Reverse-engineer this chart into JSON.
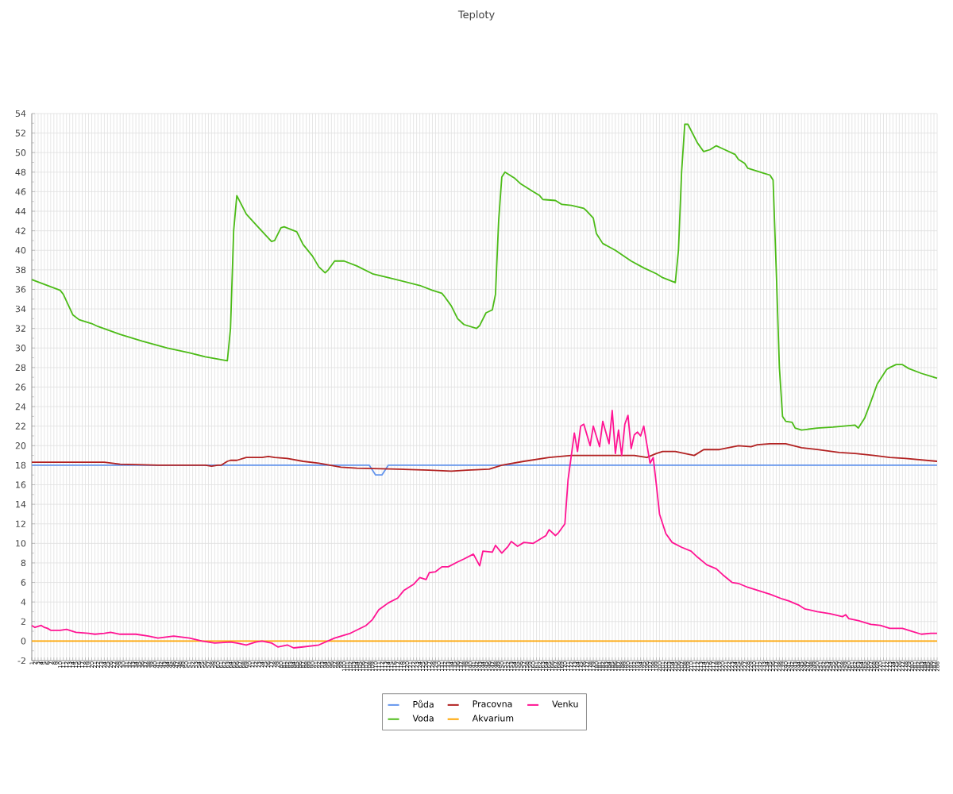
{
  "chart_data": {
    "type": "line",
    "title": "Teploty",
    "xlim": [
      1,
      288
    ],
    "xticks": [
      1,
      2,
      3,
      4,
      5,
      6,
      7,
      8,
      9,
      10,
      11,
      12,
      13,
      14,
      15,
      16,
      17,
      18,
      19,
      20,
      21,
      22,
      23,
      24,
      25,
      26,
      27,
      28,
      29,
      30,
      31,
      32,
      33,
      34,
      35,
      36,
      37,
      38,
      39,
      40,
      41,
      42,
      43,
      44,
      45,
      46,
      47,
      48,
      49,
      50,
      51,
      52,
      53,
      54,
      55,
      56,
      57,
      58,
      59,
      60,
      61,
      62,
      63,
      64,
      65,
      66,
      67,
      68,
      69,
      70,
      71,
      72,
      73,
      74,
      75,
      76,
      77,
      78,
      79,
      80,
      81,
      82,
      83,
      84,
      85,
      86,
      87,
      88,
      89,
      90,
      91,
      92,
      93,
      94,
      95,
      96,
      97,
      98,
      99,
      100,
      101,
      102,
      103,
      104,
      105,
      106,
      107,
      108,
      109,
      110,
      111,
      112,
      113,
      114,
      115,
      116,
      117,
      118,
      119,
      120,
      121,
      122,
      123,
      124,
      125,
      126,
      127,
      128,
      129,
      130,
      131,
      132,
      133,
      134,
      135,
      136,
      137,
      138,
      139,
      140,
      141,
      142,
      143,
      144,
      145,
      146,
      147,
      148,
      149,
      150,
      151,
      152,
      153,
      154,
      155,
      156,
      157,
      158,
      159,
      160,
      161,
      162,
      163,
      164,
      165,
      166,
      167,
      168,
      169,
      170,
      171,
      172,
      173,
      174,
      175,
      176,
      177,
      178,
      179,
      180,
      181,
      182,
      183,
      184,
      185,
      186,
      187,
      188,
      189,
      190,
      191,
      192,
      193,
      194,
      195,
      196,
      197,
      198,
      199,
      200,
      201,
      202,
      203,
      204,
      205,
      206,
      207,
      208,
      209,
      210,
      211,
      212,
      213,
      214,
      215,
      216,
      217,
      218,
      219,
      220,
      221,
      222,
      223,
      224,
      225,
      226,
      227,
      228,
      229,
      230,
      231,
      232,
      233,
      234,
      235,
      236,
      237,
      238,
      239,
      240,
      241,
      242,
      243,
      244,
      245,
      246,
      247,
      248,
      249,
      250,
      251,
      252,
      253,
      254,
      255,
      256,
      257,
      258,
      259,
      260,
      261,
      262,
      263,
      264,
      265,
      266,
      267,
      268,
      269,
      270,
      271,
      272,
      273,
      274,
      275,
      276,
      277,
      278,
      279,
      280,
      281,
      282,
      283,
      284,
      285,
      286,
      287,
      288
    ],
    "ylim": [
      -2,
      54
    ],
    "yticks": [
      -2,
      0,
      2,
      4,
      6,
      8,
      10,
      12,
      14,
      16,
      18,
      20,
      22,
      24,
      26,
      28,
      30,
      32,
      34,
      36,
      38,
      40,
      42,
      44,
      46,
      48,
      50,
      52,
      54
    ],
    "grid": true,
    "legend": "bottom",
    "marker": "none",
    "line_style": "solid",
    "series": [
      {
        "name": "Půda",
        "color": "#6495ed",
        "x": [
          1,
          108,
          110,
          112,
          114,
          288
        ],
        "values": [
          18,
          18,
          17,
          17,
          18,
          18
        ]
      },
      {
        "name": "Voda",
        "color": "#4cbb17",
        "x": [
          1,
          6,
          10,
          11,
          14,
          16,
          20,
          22,
          29,
          36,
          44,
          51,
          56,
          63,
          64,
          65,
          66,
          69,
          71,
          75,
          77,
          78,
          80,
          81,
          85,
          87,
          90,
          92,
          94,
          95,
          97,
          100,
          104,
          109,
          114,
          119,
          124,
          128,
          131,
          132,
          134,
          136,
          138,
          142,
          143,
          145,
          147,
          148,
          149,
          150,
          151,
          154,
          156,
          160,
          162,
          163,
          167,
          169,
          172,
          176,
          177,
          179,
          180,
          182,
          186,
          191,
          195,
          199,
          201,
          205,
          206,
          207,
          208,
          209,
          212,
          214,
          216,
          218,
          220,
          224,
          225,
          227,
          228,
          231,
          233,
          235,
          236,
          237,
          238,
          239,
          240,
          242,
          243,
          245,
          250,
          255,
          262,
          263,
          265,
          267,
          269,
          272,
          273,
          275,
          277,
          279,
          283,
          286,
          288
        ],
        "values": [
          37.0,
          36.4,
          35.9,
          35.5,
          33.4,
          32.9,
          32.5,
          32.2,
          31.4,
          30.7,
          30.0,
          29.5,
          29.1,
          28.7,
          32,
          42,
          45.6,
          43.7,
          43.0,
          41.6,
          40.9,
          41.0,
          42.3,
          42.4,
          41.9,
          40.6,
          39.4,
          38.3,
          37.7,
          38.0,
          38.9,
          38.9,
          38.4,
          37.6,
          37.2,
          36.8,
          36.4,
          35.9,
          35.6,
          35.2,
          34.3,
          33.0,
          32.4,
          32.0,
          32.3,
          33.6,
          33.9,
          35.5,
          43,
          47.5,
          48.0,
          47.4,
          46.8,
          46.0,
          45.6,
          45.2,
          45.1,
          44.7,
          44.6,
          44.3,
          44.0,
          43.3,
          41.7,
          40.7,
          40.0,
          38.9,
          38.2,
          37.6,
          37.2,
          36.7,
          40,
          48,
          52.9,
          52.9,
          51.0,
          50.1,
          50.3,
          50.7,
          50.4,
          49.8,
          49.3,
          48.9,
          48.4,
          48.1,
          47.9,
          47.7,
          47.2,
          38,
          28,
          23.0,
          22.5,
          22.4,
          21.8,
          21.6,
          21.8,
          21.9,
          22.1,
          21.8,
          22.8,
          24.5,
          26.3,
          27.8,
          28.0,
          28.3,
          28.3,
          27.9,
          27.4,
          27.1,
          26.9
        ]
      },
      {
        "name": "Pracovna",
        "color": "#b22222",
        "x": [
          1,
          24,
          29,
          41,
          56,
          58,
          60,
          61,
          63,
          64,
          66,
          69,
          74,
          76,
          78,
          82,
          87,
          92,
          99,
          104,
          117,
          127,
          134,
          139,
          146,
          150,
          157,
          165,
          172,
          192,
          196,
          199,
          201,
          205,
          211,
          214,
          219,
          225,
          229,
          231,
          235,
          240,
          245,
          250,
          257,
          262,
          268,
          273,
          278,
          288
        ],
        "values": [
          18.3,
          18.3,
          18.1,
          18.0,
          18.0,
          17.9,
          18.0,
          18.0,
          18.4,
          18.5,
          18.5,
          18.8,
          18.8,
          18.9,
          18.8,
          18.7,
          18.4,
          18.2,
          17.8,
          17.7,
          17.6,
          17.5,
          17.4,
          17.5,
          17.6,
          18.0,
          18.4,
          18.8,
          19.0,
          19.0,
          18.8,
          19.2,
          19.4,
          19.4,
          19.0,
          19.6,
          19.6,
          20.0,
          19.9,
          20.1,
          20.2,
          20.2,
          19.8,
          19.6,
          19.3,
          19.2,
          19.0,
          18.8,
          18.7,
          18.4
        ]
      },
      {
        "name": "Akvarium",
        "color": "#ffa500",
        "x": [
          1,
          288
        ],
        "values": [
          0,
          0
        ]
      },
      {
        "name": "Venku",
        "color": "#ff1493",
        "x": [
          1,
          2,
          4,
          5,
          6,
          7,
          10,
          12,
          15,
          19,
          21,
          24,
          26,
          29,
          34,
          38,
          41,
          46,
          51,
          55,
          59,
          64,
          66,
          69,
          72,
          74,
          77,
          79,
          82,
          84,
          87,
          92,
          97,
          102,
          107,
          109,
          111,
          114,
          117,
          119,
          122,
          124,
          126,
          127,
          129,
          131,
          133,
          136,
          138,
          141,
          143,
          144,
          147,
          148,
          150,
          152,
          153,
          155,
          157,
          160,
          162,
          164,
          165,
          167,
          168,
          170,
          171,
          173,
          174,
          175,
          176,
          178,
          179,
          181,
          182,
          184,
          185,
          186,
          187,
          188,
          189,
          190,
          191,
          192,
          193,
          194,
          195,
          197,
          198,
          199,
          200,
          202,
          204,
          207,
          210,
          212,
          215,
          218,
          220,
          223,
          225,
          228,
          230,
          233,
          235,
          239,
          241,
          244,
          246,
          250,
          254,
          258,
          259,
          260,
          263,
          267,
          270,
          273,
          277,
          280,
          283,
          286,
          288
        ],
        "values": [
          1.6,
          1.4,
          1.6,
          1.4,
          1.3,
          1.1,
          1.1,
          1.2,
          0.9,
          0.8,
          0.7,
          0.8,
          0.9,
          0.7,
          0.7,
          0.5,
          0.3,
          0.5,
          0.3,
          0.0,
          -0.2,
          -0.1,
          -0.2,
          -0.4,
          -0.1,
          0.0,
          -0.2,
          -0.6,
          -0.4,
          -0.7,
          -0.6,
          -0.4,
          0.3,
          0.8,
          1.6,
          2.2,
          3.2,
          3.9,
          4.4,
          5.2,
          5.8,
          6.5,
          6.3,
          7.0,
          7.1,
          7.6,
          7.6,
          8.1,
          8.4,
          8.9,
          7.7,
          9.2,
          9.1,
          9.8,
          9.0,
          9.7,
          10.2,
          9.7,
          10.1,
          10.0,
          10.4,
          10.8,
          11.4,
          10.8,
          11.1,
          12,
          16.5,
          21.3,
          19.4,
          22.0,
          22.2,
          20.0,
          22.0,
          19.9,
          22.5,
          20.2,
          23.6,
          19.2,
          21.6,
          19.0,
          22.2,
          23.1,
          19.7,
          21.1,
          21.4,
          21.0,
          22.0,
          18.2,
          18.8,
          16.0,
          13.0,
          11.0,
          10.1,
          9.6,
          9.2,
          8.6,
          7.8,
          7.4,
          6.8,
          6.0,
          5.9,
          5.5,
          5.3,
          5.0,
          4.8,
          4.3,
          4.1,
          3.7,
          3.3,
          3.0,
          2.8,
          2.5,
          2.7,
          2.3,
          2.1,
          1.7,
          1.6,
          1.3,
          1.3,
          1.0,
          0.7,
          0.8,
          0.8
        ]
      }
    ]
  }
}
